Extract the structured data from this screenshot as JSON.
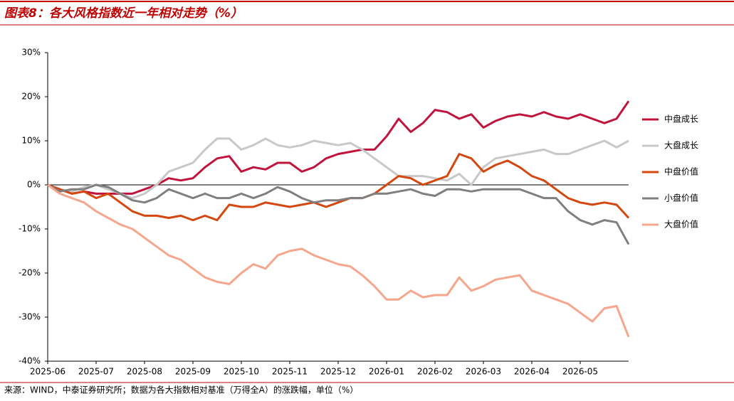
{
  "chart_data": {
    "type": "line",
    "title": "图表8：各大风格指数近一年相对走势（%）",
    "note": "来源：WIND，中泰证券研究所；数据为各大指数相对基准（万得全A）的涨跌幅，单位（%）",
    "categories": [
      "2025-06",
      null,
      null,
      null,
      "2025-07",
      null,
      null,
      null,
      "2025-08",
      null,
      null,
      null,
      "2025-09",
      null,
      null,
      null,
      "2025-10",
      null,
      null,
      null,
      "2025-11",
      null,
      null,
      null,
      "2025-12",
      null,
      null,
      null,
      "2026-01",
      null,
      null,
      null,
      "2026-02",
      null,
      null,
      null,
      "2026-03",
      null,
      null,
      null,
      "2026-04",
      null,
      null,
      null,
      "2026-05",
      null,
      null,
      null,
      null
    ],
    "ylim": [
      -40,
      30
    ],
    "yticks": [
      {
        "value": -40,
        "label": "-40%"
      },
      {
        "value": -30,
        "label": "-30%"
      },
      {
        "value": -20,
        "label": "-20%"
      },
      {
        "value": -10,
        "label": "-10%"
      },
      {
        "value": 0,
        "label": "0%"
      },
      {
        "value": 10,
        "label": "10%"
      },
      {
        "value": 20,
        "label": "20%"
      },
      {
        "value": 30,
        "label": "30%"
      }
    ],
    "series": [
      {
        "name": "中盘成长",
        "color": "#c0143c",
        "values": [
          0,
          -1,
          -2,
          -1.5,
          -2,
          -2,
          -2,
          -2,
          -1,
          0,
          1.5,
          1,
          1.5,
          4,
          6,
          6.5,
          3,
          4,
          3.5,
          5,
          5,
          3,
          4,
          6,
          7,
          7.5,
          8,
          8,
          11,
          15,
          12,
          14,
          17,
          16.5,
          15,
          16,
          13,
          14.5,
          15.5,
          16,
          15.5,
          16.5,
          15.5,
          15,
          16,
          15,
          14,
          15,
          19
        ]
      },
      {
        "name": "大盘成长",
        "color": "#c8c8c8",
        "values": [
          0,
          -1,
          -1.5,
          -0.5,
          0,
          -1,
          -2,
          -3,
          -2,
          0,
          3,
          4,
          5,
          8,
          10.5,
          10.5,
          8,
          9,
          10.5,
          9,
          8.5,
          9,
          10,
          9.5,
          9,
          9.5,
          8,
          6,
          4,
          2,
          2,
          2,
          1.5,
          1,
          2.5,
          0,
          4,
          6,
          6.5,
          7,
          7.5,
          8,
          7,
          7,
          8,
          9,
          10,
          8.5,
          10
        ]
      },
      {
        "name": "中盘价值",
        "color": "#d4470f",
        "values": [
          0,
          -1,
          -2,
          -1.5,
          -3,
          -2,
          -4,
          -6,
          -7,
          -7,
          -7.5,
          -7,
          -8,
          -7,
          -8,
          -4.5,
          -5,
          -5,
          -4,
          -4.5,
          -5,
          -4.5,
          -4,
          -5,
          -4,
          -3,
          -3,
          -2,
          0,
          2,
          1.5,
          0,
          1,
          2,
          7,
          6,
          3,
          4.5,
          5.5,
          4,
          2,
          1,
          -1,
          -3,
          -4,
          -4.5,
          -4,
          -4.5,
          -7.5
        ]
      },
      {
        "name": "小盘价值",
        "color": "#7f7f7f",
        "values": [
          0,
          -1.5,
          -1,
          -1,
          0,
          -0.5,
          -2,
          -3.5,
          -4,
          -3,
          -1,
          -2,
          -3,
          -2,
          -3,
          -3,
          -2,
          -3,
          -2,
          -0.5,
          -1.5,
          -3,
          -4,
          -3.5,
          -3.5,
          -3,
          -3,
          -2,
          -2,
          -1.5,
          -1,
          -2,
          -2.5,
          -1,
          -1,
          -1.5,
          -1,
          -1,
          -1,
          -1,
          -2,
          -3,
          -3,
          -6,
          -8,
          -9,
          -8,
          -8.5,
          -13.5
        ]
      },
      {
        "name": "大盘价值",
        "color": "#f5a68c",
        "values": [
          0,
          -2,
          -3,
          -4,
          -6,
          -7.5,
          -9,
          -10,
          -12,
          -14,
          -16,
          -17,
          -19,
          -21,
          -22,
          -22.5,
          -20,
          -18,
          -19,
          -16,
          -15,
          -14.5,
          -16,
          -17,
          -18,
          -18.5,
          -20.5,
          -23,
          -26,
          -26,
          -24,
          -25.5,
          -25,
          -25,
          -21,
          -24,
          -23,
          -21.5,
          -21,
          -20.5,
          -24,
          -25,
          -26,
          -27,
          -29,
          -31,
          -28,
          -27.5,
          -34.5
        ]
      }
    ]
  }
}
